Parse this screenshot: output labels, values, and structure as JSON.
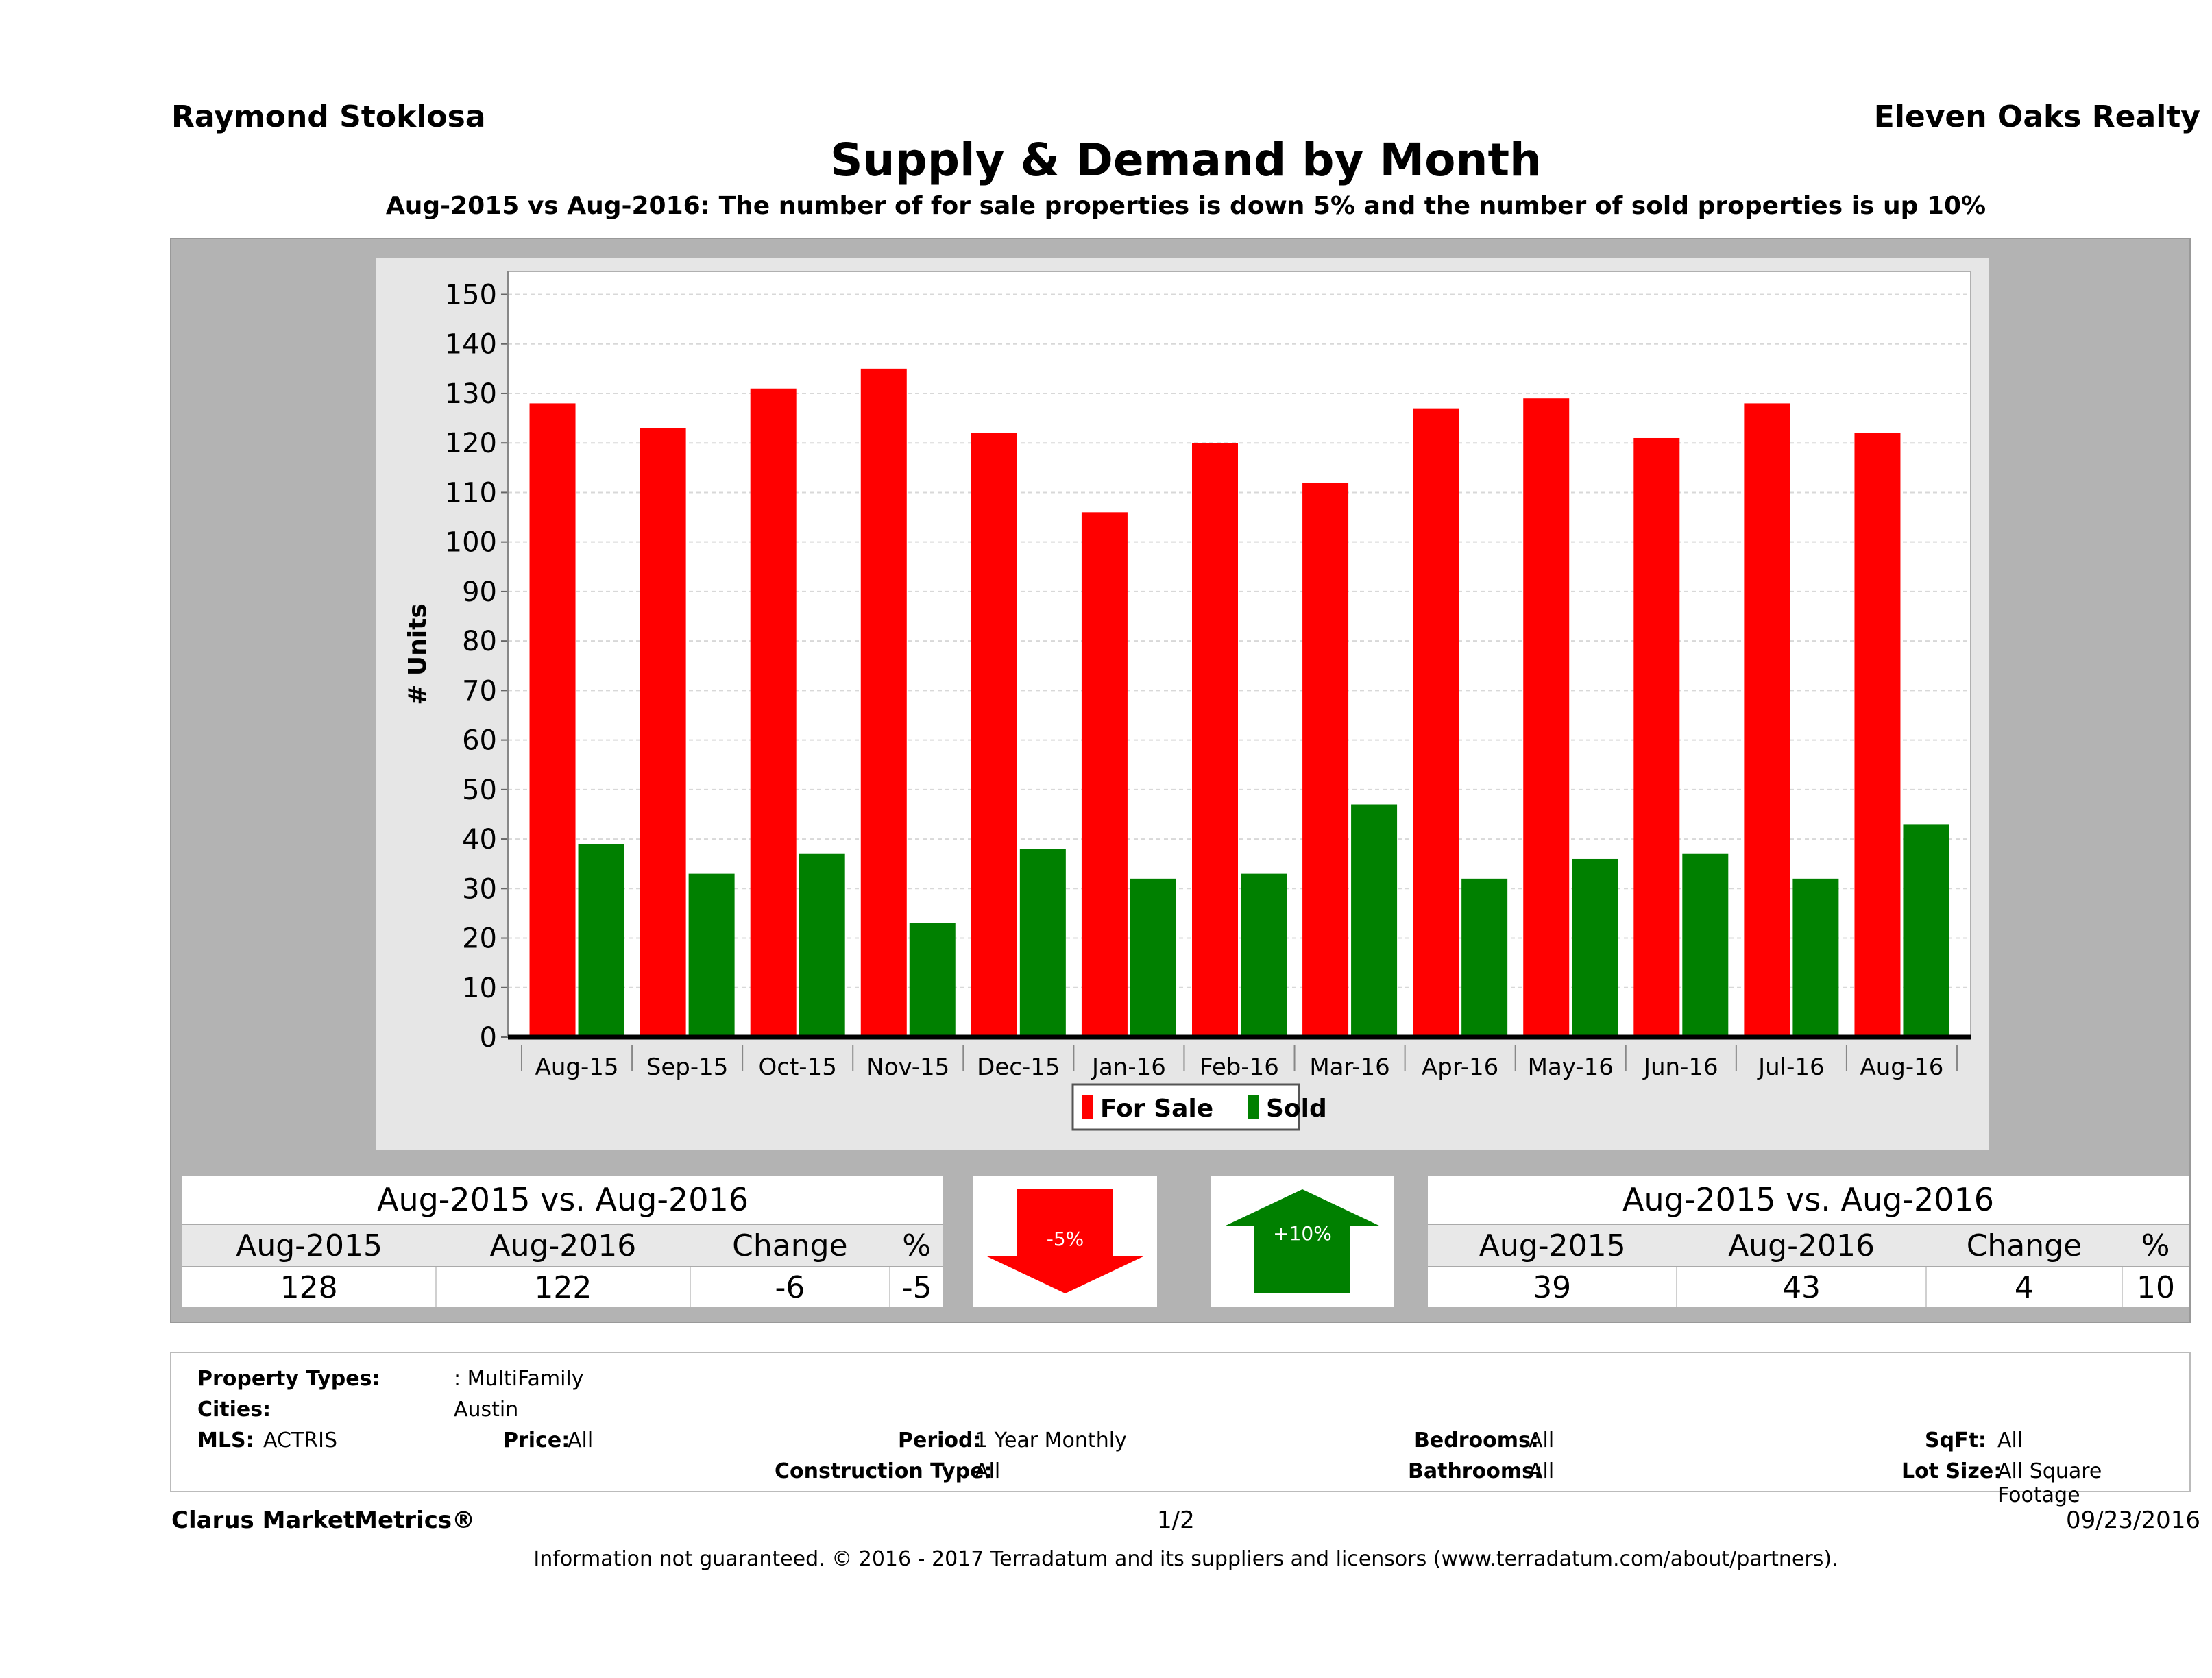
{
  "header": {
    "agent": "Raymond Stoklosa",
    "broker": "Eleven Oaks Realty",
    "title": "Supply & Demand by Month",
    "subtitle": "Aug-2015 vs Aug-2016: The number of for sale properties is down 5% and the number of sold properties is up 10%"
  },
  "chart_data": {
    "type": "bar",
    "title": "",
    "xlabel": "",
    "ylabel": "# Units",
    "ylim": [
      0,
      150
    ],
    "yticks": [
      0,
      10,
      20,
      30,
      40,
      50,
      60,
      70,
      80,
      90,
      100,
      110,
      120,
      130,
      140,
      150
    ],
    "grid": true,
    "legend_position": "bottom",
    "categories": [
      "Aug-15",
      "Sep-15",
      "Oct-15",
      "Nov-15",
      "Dec-15",
      "Jan-16",
      "Feb-16",
      "Mar-16",
      "Apr-16",
      "May-16",
      "Jun-16",
      "Jul-16",
      "Aug-16"
    ],
    "series": [
      {
        "name": "For Sale",
        "color": "#ff0000",
        "values": [
          128,
          123,
          131,
          135,
          122,
          106,
          120,
          112,
          127,
          129,
          121,
          128,
          122
        ]
      },
      {
        "name": "Sold",
        "color": "#008000",
        "values": [
          39,
          33,
          37,
          23,
          38,
          32,
          33,
          47,
          32,
          36,
          37,
          32,
          43
        ]
      }
    ]
  },
  "for_sale_table": {
    "title": "Aug-2015 vs. Aug-2016",
    "headers": [
      "Aug-2015",
      "Aug-2016",
      "Change",
      "%"
    ],
    "values": [
      "128",
      "122",
      "-6",
      "-5"
    ]
  },
  "sold_table": {
    "title": "Aug-2015 vs. Aug-2016",
    "headers": [
      "Aug-2015",
      "Aug-2016",
      "Change",
      "%"
    ],
    "values": [
      "39",
      "43",
      "4",
      "10"
    ]
  },
  "arrows": {
    "down_label": "-5%",
    "down_color": "#ff0000",
    "up_label": "+10%",
    "up_color": "#008000"
  },
  "criteria": {
    "property_types_label": "Property Types:",
    "property_types_value": ": MultiFamily",
    "cities_label": "Cities:",
    "cities_value": "Austin",
    "mls_label": "MLS:",
    "mls_value": "ACTRIS",
    "price_label": "Price:",
    "price_value": "All",
    "period_label": "Period:",
    "period_value": "1 Year Monthly",
    "construction_label": "Construction Type:",
    "construction_value": "All",
    "bedrooms_label": "Bedrooms:",
    "bedrooms_value": "All",
    "bathrooms_label": "Bathrooms:",
    "bathrooms_value": "All",
    "sqft_label": "SqFt:",
    "sqft_value": "All",
    "lot_label": "Lot Size:",
    "lot_value": "All Square Footage"
  },
  "footer": {
    "brand": "Clarus MarketMetrics®",
    "page": "1/2",
    "date": "09/23/2016",
    "disclaimer": "Information not guaranteed. © 2016 - 2017 Terradatum and its suppliers and licensors (www.terradatum.com/about/partners)."
  }
}
